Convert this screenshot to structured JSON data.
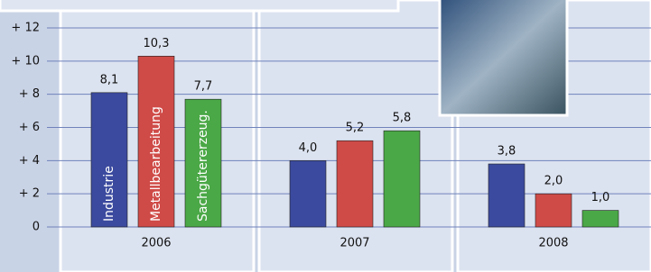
{
  "chart_data": {
    "type": "bar",
    "categories": [
      "2006",
      "2007",
      "2008"
    ],
    "series": [
      {
        "name": "Industrie",
        "color": "#3b4a9e",
        "values": [
          8.1,
          4.0,
          3.8
        ],
        "value_labels": [
          "8,1",
          "4,0",
          "3,8"
        ]
      },
      {
        "name": "Metallbearbeitung",
        "color": "#cf4b48",
        "values": [
          10.3,
          5.2,
          2.0
        ],
        "value_labels": [
          "10,3",
          "5,2",
          "2,0"
        ]
      },
      {
        "name": "Sachgütererzeug.",
        "color": "#4aa846",
        "values": [
          7.7,
          5.8,
          1.0
        ],
        "value_labels": [
          "7,7",
          "5,8",
          "1,0"
        ]
      }
    ],
    "ylim": [
      0,
      12
    ],
    "yticks": [
      0,
      {
        "value": 2,
        "label": "+ 2"
      },
      {
        "value": 4,
        "label": "+ 4"
      },
      {
        "value": 6,
        "label": "+ 6"
      },
      {
        "value": 8,
        "label": "+ 8"
      },
      {
        "value": 10,
        "label": "+ 10"
      },
      {
        "value": 12,
        "label": "+ 12"
      }
    ],
    "grid": true
  }
}
